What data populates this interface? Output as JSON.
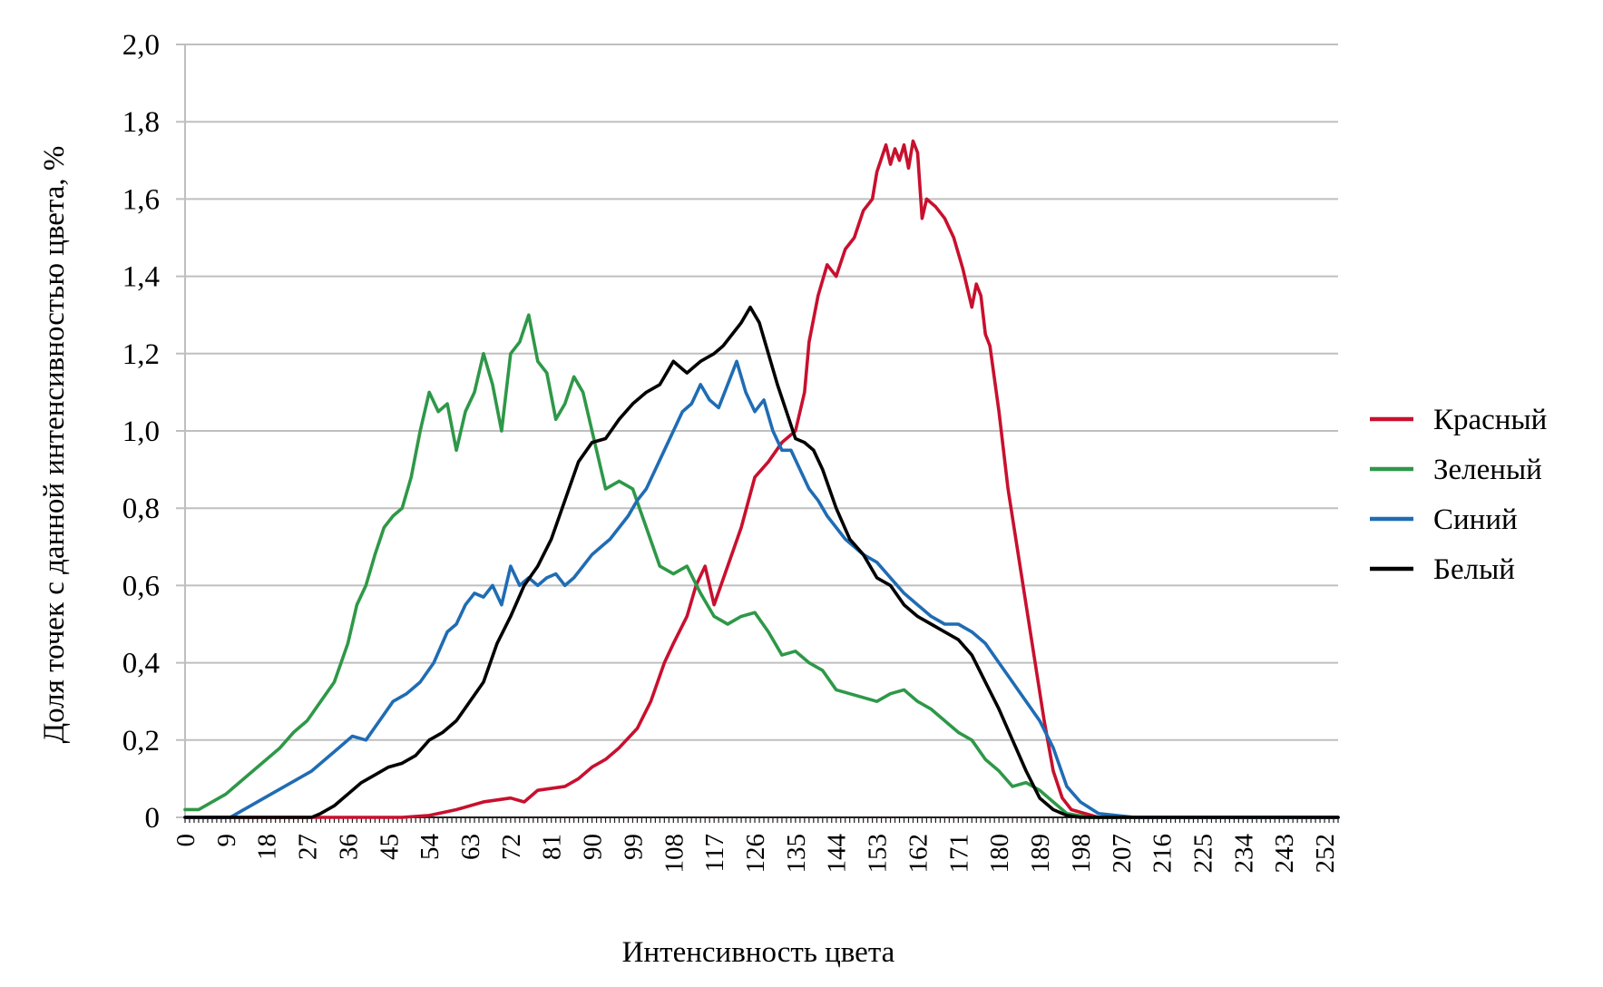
{
  "chart_data": {
    "type": "line",
    "title": "",
    "xlabel": "Интенсивность цвета",
    "ylabel": "Доля точек с данной интенсивностью цвета, %",
    "xlim": [
      0,
      255
    ],
    "ylim": [
      0,
      2
    ],
    "grid": "horizontal",
    "legend_position": "right",
    "yticks": [
      {
        "value": 0,
        "label": "0"
      },
      {
        "value": 0.2,
        "label": "0,2"
      },
      {
        "value": 0.4,
        "label": "0,4"
      },
      {
        "value": 0.6,
        "label": "0,6"
      },
      {
        "value": 0.8,
        "label": "0,8"
      },
      {
        "value": 1.0,
        "label": "1,0"
      },
      {
        "value": 1.2,
        "label": "1,2"
      },
      {
        "value": 1.4,
        "label": "1,4"
      },
      {
        "value": 1.6,
        "label": "1,6"
      },
      {
        "value": 1.8,
        "label": "1,8"
      },
      {
        "value": 2.0,
        "label": "2,0"
      }
    ],
    "xticks": [
      "0",
      "9",
      "18",
      "27",
      "36",
      "45",
      "54",
      "63",
      "72",
      "81",
      "90",
      "99",
      "108",
      "117",
      "126",
      "135",
      "144",
      "153",
      "162",
      "171",
      "180",
      "189",
      "198",
      "207",
      "216",
      "225",
      "234",
      "243",
      "252"
    ],
    "series": [
      {
        "name": "Красный",
        "color": "#c8102e",
        "x": [
          0,
          30,
          40,
          48,
          54,
          60,
          66,
          72,
          75,
          78,
          84,
          87,
          90,
          93,
          96,
          100,
          103,
          106,
          108,
          111,
          113,
          115,
          117,
          120,
          123,
          126,
          129,
          132,
          135,
          137,
          138,
          140,
          142,
          144,
          146,
          148,
          150,
          152,
          153,
          155,
          156,
          157,
          158,
          159,
          160,
          161,
          162,
          163,
          164,
          166,
          168,
          170,
          172,
          174,
          175,
          176,
          177,
          178,
          180,
          182,
          184,
          186,
          188,
          190,
          192,
          194,
          196,
          199,
          202,
          206,
          255
        ],
        "y": [
          0,
          0,
          0,
          0,
          0.005,
          0.02,
          0.04,
          0.05,
          0.04,
          0.07,
          0.08,
          0.1,
          0.13,
          0.15,
          0.18,
          0.23,
          0.3,
          0.4,
          0.45,
          0.52,
          0.6,
          0.65,
          0.55,
          0.65,
          0.75,
          0.88,
          0.92,
          0.97,
          1.0,
          1.1,
          1.23,
          1.35,
          1.43,
          1.4,
          1.47,
          1.5,
          1.57,
          1.6,
          1.67,
          1.74,
          1.69,
          1.73,
          1.7,
          1.74,
          1.68,
          1.75,
          1.72,
          1.55,
          1.6,
          1.58,
          1.55,
          1.5,
          1.42,
          1.32,
          1.38,
          1.35,
          1.25,
          1.22,
          1.05,
          0.85,
          0.7,
          0.55,
          0.4,
          0.25,
          0.12,
          0.05,
          0.02,
          0.01,
          0,
          0,
          0
        ]
      },
      {
        "name": "Зеленый",
        "color": "#2e9848",
        "x": [
          0,
          3,
          6,
          9,
          12,
          15,
          18,
          21,
          24,
          27,
          30,
          33,
          36,
          38,
          40,
          42,
          44,
          46,
          48,
          50,
          52,
          54,
          56,
          58,
          60,
          62,
          64,
          66,
          68,
          70,
          72,
          74,
          76,
          78,
          80,
          82,
          84,
          86,
          88,
          90,
          93,
          96,
          99,
          102,
          105,
          108,
          111,
          114,
          117,
          120,
          123,
          126,
          129,
          132,
          135,
          138,
          141,
          144,
          147,
          150,
          153,
          156,
          159,
          162,
          165,
          168,
          171,
          174,
          177,
          180,
          183,
          186,
          189,
          192,
          195,
          200,
          255
        ],
        "y": [
          0.02,
          0.02,
          0.04,
          0.06,
          0.09,
          0.12,
          0.15,
          0.18,
          0.22,
          0.25,
          0.3,
          0.35,
          0.45,
          0.55,
          0.6,
          0.68,
          0.75,
          0.78,
          0.8,
          0.88,
          1.0,
          1.1,
          1.05,
          1.07,
          0.95,
          1.05,
          1.1,
          1.2,
          1.12,
          1.0,
          1.2,
          1.23,
          1.3,
          1.18,
          1.15,
          1.03,
          1.07,
          1.14,
          1.1,
          1.0,
          0.85,
          0.87,
          0.85,
          0.75,
          0.65,
          0.63,
          0.65,
          0.58,
          0.52,
          0.5,
          0.52,
          0.53,
          0.48,
          0.42,
          0.43,
          0.4,
          0.38,
          0.33,
          0.32,
          0.31,
          0.3,
          0.32,
          0.33,
          0.3,
          0.28,
          0.25,
          0.22,
          0.2,
          0.15,
          0.12,
          0.08,
          0.09,
          0.07,
          0.04,
          0.01,
          0,
          0
        ]
      },
      {
        "name": "Синий",
        "color": "#1f6cb4",
        "x": [
          0,
          10,
          13,
          16,
          19,
          22,
          25,
          28,
          31,
          34,
          37,
          40,
          43,
          46,
          49,
          52,
          55,
          58,
          60,
          62,
          64,
          66,
          68,
          70,
          72,
          74,
          76,
          78,
          80,
          82,
          84,
          86,
          88,
          90,
          92,
          94,
          96,
          98,
          100,
          102,
          104,
          106,
          108,
          110,
          112,
          114,
          116,
          118,
          120,
          122,
          124,
          126,
          128,
          130,
          132,
          134,
          136,
          138,
          140,
          142,
          144,
          146,
          148,
          150,
          153,
          156,
          159,
          162,
          165,
          168,
          171,
          174,
          177,
          180,
          183,
          186,
          189,
          192,
          195,
          198,
          202,
          206,
          210,
          255
        ],
        "y": [
          0,
          0,
          0.02,
          0.04,
          0.06,
          0.08,
          0.1,
          0.12,
          0.15,
          0.18,
          0.21,
          0.2,
          0.25,
          0.3,
          0.32,
          0.35,
          0.4,
          0.48,
          0.5,
          0.55,
          0.58,
          0.57,
          0.6,
          0.55,
          0.65,
          0.6,
          0.62,
          0.6,
          0.62,
          0.63,
          0.6,
          0.62,
          0.65,
          0.68,
          0.7,
          0.72,
          0.75,
          0.78,
          0.82,
          0.85,
          0.9,
          0.95,
          1.0,
          1.05,
          1.07,
          1.12,
          1.08,
          1.06,
          1.12,
          1.18,
          1.1,
          1.05,
          1.08,
          1.0,
          0.95,
          0.95,
          0.9,
          0.85,
          0.82,
          0.78,
          0.75,
          0.72,
          0.7,
          0.68,
          0.66,
          0.62,
          0.58,
          0.55,
          0.52,
          0.5,
          0.5,
          0.48,
          0.45,
          0.4,
          0.35,
          0.3,
          0.25,
          0.18,
          0.08,
          0.04,
          0.01,
          0.005,
          0,
          0
        ]
      },
      {
        "name": "Белый",
        "color": "#000000",
        "x": [
          0,
          28,
          30,
          33,
          36,
          39,
          42,
          45,
          48,
          51,
          54,
          57,
          60,
          63,
          66,
          69,
          72,
          75,
          78,
          81,
          84,
          87,
          90,
          93,
          96,
          99,
          102,
          105,
          108,
          111,
          114,
          117,
          119,
          121,
          123,
          125,
          127,
          129,
          131,
          133,
          135,
          137,
          139,
          141,
          144,
          147,
          150,
          153,
          156,
          159,
          162,
          165,
          168,
          171,
          174,
          177,
          180,
          183,
          186,
          189,
          192,
          195,
          198,
          255
        ],
        "y": [
          0,
          0,
          0.01,
          0.03,
          0.06,
          0.09,
          0.11,
          0.13,
          0.14,
          0.16,
          0.2,
          0.22,
          0.25,
          0.3,
          0.35,
          0.45,
          0.52,
          0.6,
          0.65,
          0.72,
          0.82,
          0.92,
          0.97,
          0.98,
          1.03,
          1.07,
          1.1,
          1.12,
          1.18,
          1.15,
          1.18,
          1.2,
          1.22,
          1.25,
          1.28,
          1.32,
          1.28,
          1.2,
          1.12,
          1.05,
          0.98,
          0.97,
          0.95,
          0.9,
          0.8,
          0.72,
          0.68,
          0.62,
          0.6,
          0.55,
          0.52,
          0.5,
          0.48,
          0.46,
          0.42,
          0.35,
          0.28,
          0.2,
          0.12,
          0.05,
          0.02,
          0.005,
          0,
          0
        ]
      }
    ]
  }
}
